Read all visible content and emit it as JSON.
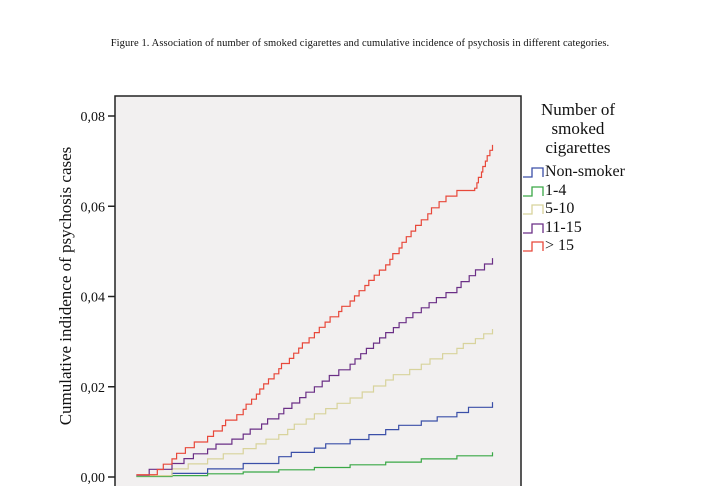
{
  "chart_data": {
    "type": "line",
    "title": "Figure 1. Association of number of smoked cigarettes and cumulative incidence of psychosis in different categories.",
    "xlabel": "",
    "ylabel": "Cumulative indidence of psychosis cases",
    "ylim": [
      0,
      0.08
    ],
    "xlim": [
      -6,
      108
    ],
    "yticks": [
      "0,00",
      "0,02",
      "0,04",
      "0,06",
      "0,08"
    ],
    "ytick_values": [
      0,
      0.02,
      0.04,
      0.06,
      0.08
    ],
    "grid": false,
    "legend_title": "Number of smoked cigarettes",
    "legend_placement": "right",
    "series": [
      {
        "name": "Non-smoker",
        "color": "#3b4fa8",
        "x": [
          0,
          10,
          20,
          30,
          40,
          50,
          60,
          70,
          80,
          90,
          100
        ],
        "y": [
          0.0002,
          0.0008,
          0.0018,
          0.003,
          0.0045,
          0.0064,
          0.0083,
          0.0105,
          0.0124,
          0.0143,
          0.0166
        ]
      },
      {
        "name": "1-4",
        "color": "#3aa846",
        "x": [
          0,
          10,
          20,
          30,
          40,
          50,
          60,
          70,
          80,
          90,
          100
        ],
        "y": [
          0.0001,
          0.0003,
          0.0007,
          0.0011,
          0.0016,
          0.0021,
          0.0027,
          0.0033,
          0.004,
          0.0047,
          0.0055
        ]
      },
      {
        "name": "5-10",
        "color": "#d8d39c",
        "x": [
          0,
          10,
          20,
          30,
          40,
          50,
          60,
          70,
          80,
          90,
          100
        ],
        "y": [
          0.0003,
          0.0018,
          0.004,
          0.0063,
          0.0094,
          0.014,
          0.0175,
          0.0215,
          0.025,
          0.0285,
          0.0328
        ]
      },
      {
        "name": "11-15",
        "color": "#6b2f86",
        "x": [
          0,
          10,
          20,
          30,
          40,
          50,
          60,
          70,
          80,
          90,
          100
        ],
        "y": [
          0.0004,
          0.003,
          0.0062,
          0.0095,
          0.014,
          0.02,
          0.025,
          0.032,
          0.0375,
          0.042,
          0.0485
        ]
      },
      {
        "name": "> 15",
        "color": "#e8483a",
        "x": [
          0,
          5,
          10,
          20,
          30,
          40,
          50,
          60,
          70,
          80,
          85,
          90,
          95,
          100
        ],
        "y": [
          0.0005,
          0.0005,
          0.004,
          0.009,
          0.015,
          0.024,
          0.032,
          0.039,
          0.047,
          0.057,
          0.061,
          0.0635,
          0.064,
          0.0736
        ]
      }
    ]
  }
}
